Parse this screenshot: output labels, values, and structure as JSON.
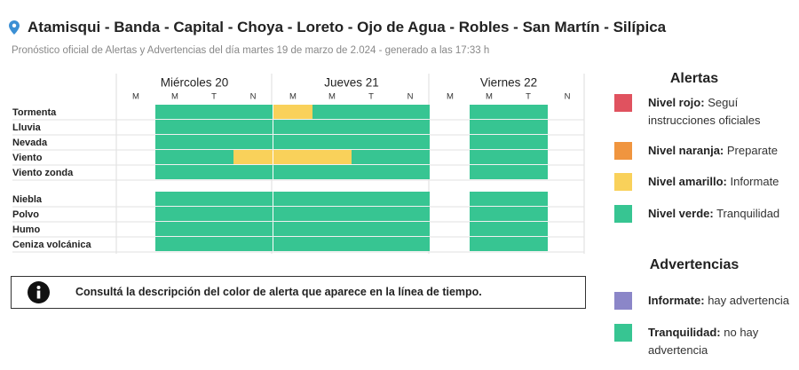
{
  "header": {
    "title": "Atamisqui - Banda - Capital - Choya - Loreto - Ojo de Agua - Robles - San Martín - Silípica",
    "subtitle": "Pronóstico oficial de Alertas y Advertencias del día martes 19 de marzo de 2.024 - generado a las 17:33 h"
  },
  "timeline": {
    "days": [
      {
        "label": "Miércoles 20",
        "slots": [
          "M",
          "M",
          "T",
          "N"
        ]
      },
      {
        "label": "Jueves 21",
        "slots": [
          "M",
          "M",
          "T",
          "N"
        ]
      },
      {
        "label": "Viernes 22",
        "slots": [
          "M",
          "M",
          "T",
          "N"
        ]
      }
    ],
    "groups": [
      {
        "rows": [
          {
            "label": "Tormenta",
            "cells": [
              null,
              3,
              3,
              3,
              2,
              3,
              3,
              3,
              null,
              3,
              3,
              null
            ]
          },
          {
            "label": "Lluvia",
            "cells": [
              null,
              3,
              3,
              3,
              3,
              3,
              3,
              3,
              null,
              3,
              3,
              null
            ]
          },
          {
            "label": "Nevada",
            "cells": [
              null,
              3,
              3,
              3,
              3,
              3,
              3,
              3,
              null,
              3,
              3,
              null
            ]
          },
          {
            "label": "Viento",
            "cells": [
              null,
              3,
              3,
              2,
              2,
              2,
              3,
              3,
              null,
              3,
              3,
              null
            ]
          },
          {
            "label": "Viento zonda",
            "cells": [
              null,
              3,
              3,
              3,
              3,
              3,
              3,
              3,
              null,
              3,
              3,
              null
            ]
          }
        ]
      },
      {
        "rows": [
          {
            "label": "Niebla",
            "cells": [
              null,
              3,
              3,
              3,
              3,
              3,
              3,
              3,
              null,
              3,
              3,
              null
            ]
          },
          {
            "label": "Polvo",
            "cells": [
              null,
              3,
              3,
              3,
              3,
              3,
              3,
              3,
              null,
              3,
              3,
              null
            ]
          },
          {
            "label": "Humo",
            "cells": [
              null,
              3,
              3,
              3,
              3,
              3,
              3,
              3,
              null,
              3,
              3,
              null
            ]
          },
          {
            "label": "Ceniza volcánica",
            "cells": [
              null,
              3,
              3,
              3,
              3,
              3,
              3,
              3,
              null,
              3,
              3,
              null
            ]
          }
        ]
      }
    ]
  },
  "info": "Consultá la descripción del color de alerta que aparece en la línea de tiempo.",
  "alerts": {
    "title": "Alertas",
    "items": [
      {
        "label": "Nivel rojo:",
        "text": "Seguí instrucciones oficiales",
        "color": "#e0525f"
      },
      {
        "label": "Nivel naranja:",
        "text": "Preparate",
        "color": "#f0953f"
      },
      {
        "label": "Nivel amarillo:",
        "text": "Informate",
        "color": "#f9d15a"
      },
      {
        "label": "Nivel verde:",
        "text": "Tranquilidad",
        "color": "#37c592"
      }
    ]
  },
  "warnings": {
    "title": "Advertencias",
    "items": [
      {
        "label": "Informate:",
        "text": "hay advertencia",
        "color": "#8b86c8"
      },
      {
        "label": "Tranquilidad:",
        "text": "no hay advertencia",
        "color": "#37c592"
      }
    ]
  }
}
